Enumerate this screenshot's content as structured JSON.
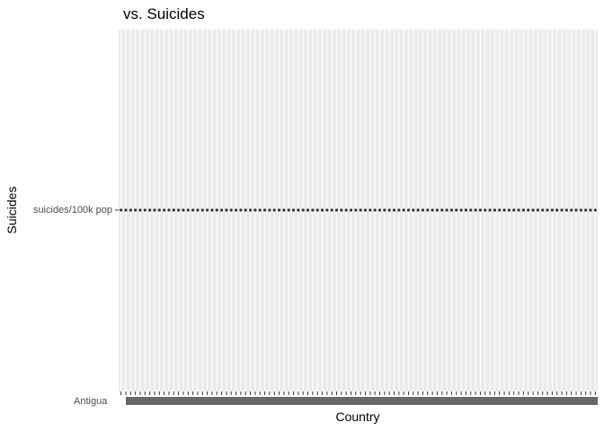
{
  "chart_data": {
    "type": "scatter",
    "title": "vs. Suicides",
    "xlabel": "Country",
    "ylabel": "Suicides",
    "y_categories": [
      "suicides/100k pop"
    ],
    "x_categories_visible": [
      "Antigua"
    ],
    "x_category_count": 100,
    "grid": true,
    "colors": {
      "panel": "#ebebeb",
      "grid": "#ffffff",
      "points": "#333333",
      "tick_text": "#4d4d4d",
      "ticks": "#333333"
    }
  }
}
